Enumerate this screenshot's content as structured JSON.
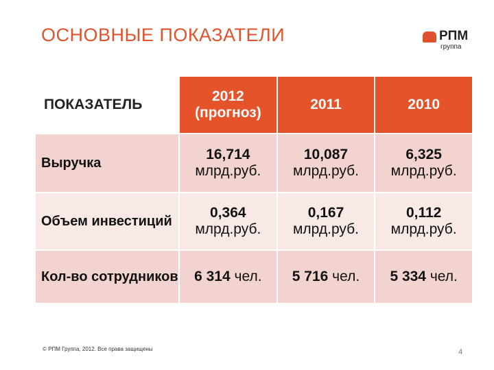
{
  "header": {
    "title": "ОСНОВНЫЕ ПОКАЗАТЕЛИ",
    "logo": {
      "name": "РПМ",
      "sub": "группа"
    }
  },
  "table": {
    "columns": [
      [
        "ПОКАЗАТЕЛЬ"
      ],
      [
        "2012",
        "(прогноз)"
      ],
      [
        "2011"
      ],
      [
        "2010"
      ]
    ],
    "rows": [
      {
        "label": "Выручка",
        "cells": [
          {
            "value": "16,714",
            "unit": "млрд.руб."
          },
          {
            "value": "10,087",
            "unit": "млрд.руб."
          },
          {
            "value": "6,325",
            "unit": "млрд.руб."
          }
        ]
      },
      {
        "label": "Объем инвестиций",
        "cells": [
          {
            "value": "0,364",
            "unit": "млрд.руб."
          },
          {
            "value": "0,167",
            "unit": "млрд.руб."
          },
          {
            "value": "0,112",
            "unit": "млрд.руб."
          }
        ]
      },
      {
        "label": "Кол-во сотрудников",
        "cells": [
          {
            "value": "6 314",
            "unit": "чел."
          },
          {
            "value": "5 716",
            "unit": "чел."
          },
          {
            "value": "5 334",
            "unit": "чел."
          }
        ]
      }
    ]
  },
  "footer": {
    "copyright": "© РПМ Группа, 2012. Все права защищены",
    "page": "4"
  }
}
